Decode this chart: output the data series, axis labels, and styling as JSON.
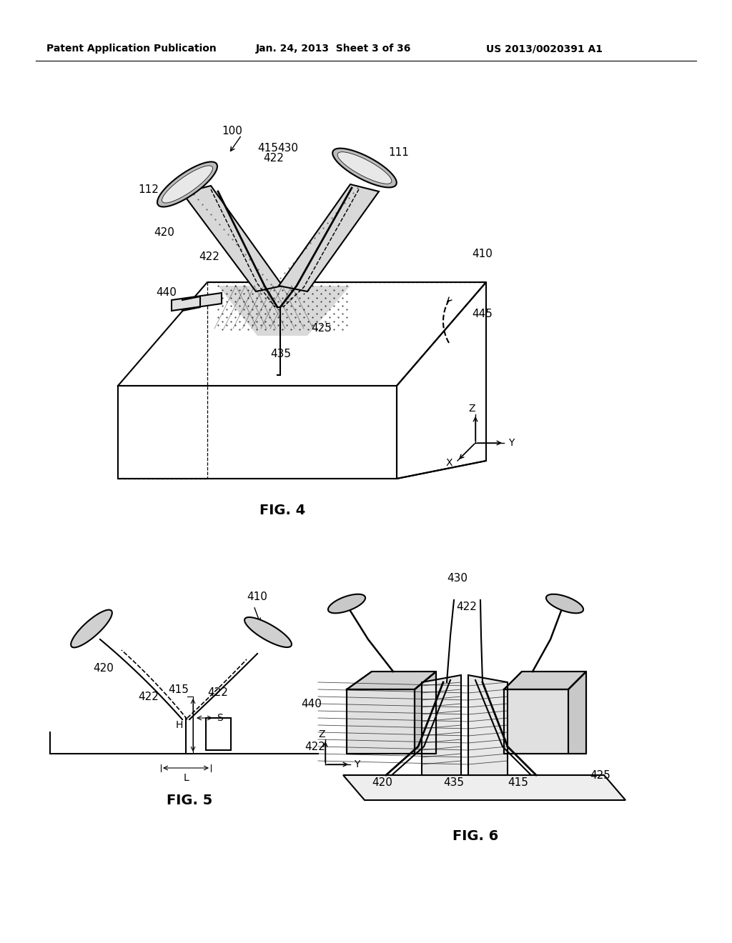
{
  "background_color": "#ffffff",
  "header_left": "Patent Application Publication",
  "header_center": "Jan. 24, 2013  Sheet 3 of 36",
  "header_right": "US 2013/0020391 A1",
  "fig4_label": "FIG. 4",
  "fig5_label": "FIG. 5",
  "fig6_label": "FIG. 6",
  "line_color": "#000000",
  "line_width": 1.5,
  "annotation_fontsize": 11,
  "lw_thin": 0.8,
  "lw_med": 1.4,
  "lw_thick": 2.0
}
